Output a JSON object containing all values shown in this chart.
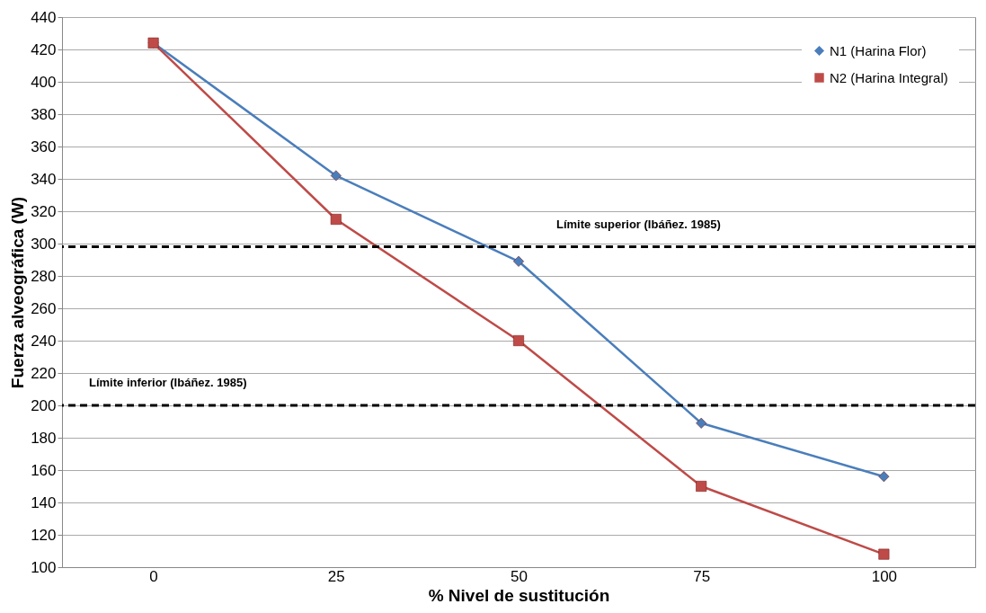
{
  "chart_data": {
    "type": "line",
    "xlabel": "% Nivel de sustitución",
    "ylabel": "Fuerza alveográfica (W)",
    "categories": [
      "0",
      "25",
      "50",
      "75",
      "100"
    ],
    "series": [
      {
        "name": "N1 (Harina Flor)",
        "color": "#4a7ebb",
        "marker": "diamond",
        "values": [
          424,
          342,
          289,
          189,
          156
        ]
      },
      {
        "name": "N2 (Harina Integral)",
        "color": "#be4b48",
        "marker": "square",
        "values": [
          424,
          315,
          240,
          150,
          108
        ]
      }
    ],
    "ylim": [
      100,
      440
    ],
    "yticks": [
      100,
      120,
      140,
      160,
      180,
      200,
      220,
      240,
      260,
      280,
      300,
      320,
      340,
      360,
      380,
      400,
      420,
      440
    ],
    "ref_lines": [
      {
        "axis": "y",
        "value": 298,
        "label": "Límite superior (Ibáñez. 1985)",
        "color": "#000000",
        "line_style": "dashed"
      },
      {
        "axis": "y",
        "value": 200,
        "label": "Límite inferior (Ibáñez. 1985)",
        "color": "#000000",
        "line_style": "dashed"
      }
    ],
    "grid": "y",
    "legend": "top right",
    "line_style": "solid"
  }
}
